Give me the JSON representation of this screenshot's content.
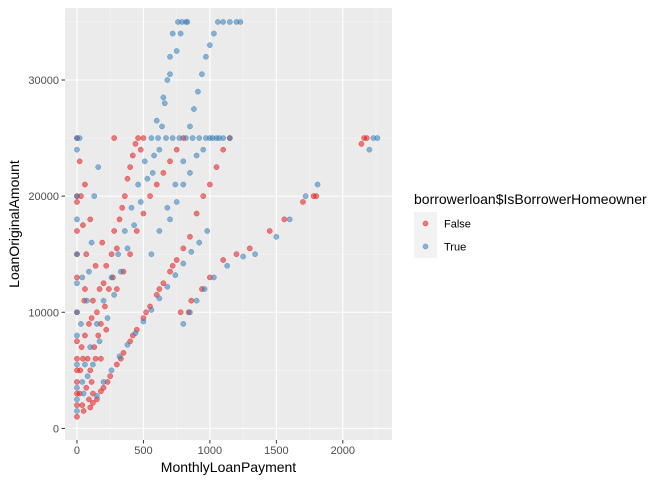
{
  "chart_data": {
    "type": "scatter",
    "xlabel": "MonthlyLoanPayment",
    "ylabel": "LoanOriginalAmount",
    "xlim": [
      -90,
      2370
    ],
    "ylim": [
      -1000,
      36200
    ],
    "x_ticks": [
      0,
      500,
      1000,
      1500,
      2000
    ],
    "y_ticks": [
      0,
      10000,
      20000,
      30000
    ],
    "x_tick_labels": [
      "0",
      "500",
      "1000",
      "1500",
      "2000"
    ],
    "y_tick_labels": [
      "0",
      "10000",
      "20000",
      "30000"
    ],
    "grid": true,
    "legend": {
      "title": "borrowerloan$IsBorrowerHomeowner",
      "placement": "right",
      "entries": [
        {
          "label": "False",
          "color": "#E41A1C"
        },
        {
          "label": "True",
          "color": "#377EB8"
        }
      ]
    },
    "series": [
      {
        "name": "False",
        "color": "#E41A1C",
        "points": [
          [
            0,
            1000
          ],
          [
            0,
            2000
          ],
          [
            0,
            3000
          ],
          [
            0,
            4000
          ],
          [
            0,
            5000
          ],
          [
            0,
            6000
          ],
          [
            0,
            7500
          ],
          [
            0,
            10000
          ],
          [
            0,
            13000
          ],
          [
            0,
            15000
          ],
          [
            0,
            17000
          ],
          [
            0,
            19500
          ],
          [
            0,
            20000
          ],
          [
            0,
            25000
          ],
          [
            20,
            3000
          ],
          [
            25,
            5000
          ],
          [
            40,
            2000
          ],
          [
            45,
            6000
          ],
          [
            50,
            1500
          ],
          [
            60,
            8000
          ],
          [
            70,
            3500
          ],
          [
            80,
            6000
          ],
          [
            90,
            2500
          ],
          [
            100,
            5000
          ],
          [
            110,
            4000
          ],
          [
            110,
            9500
          ],
          [
            120,
            3000
          ],
          [
            130,
            7000
          ],
          [
            140,
            6000
          ],
          [
            150,
            10000
          ],
          [
            160,
            8000
          ],
          [
            170,
            12000
          ],
          [
            180,
            9000
          ],
          [
            200,
            12500
          ],
          [
            210,
            10500
          ],
          [
            220,
            14000
          ],
          [
            240,
            12000
          ],
          [
            260,
            15000
          ],
          [
            270,
            13000
          ],
          [
            280,
            17000
          ],
          [
            300,
            15500
          ],
          [
            320,
            18000
          ],
          [
            340,
            19000
          ],
          [
            360,
            20000
          ],
          [
            380,
            21500
          ],
          [
            400,
            22500
          ],
          [
            420,
            23500
          ],
          [
            440,
            24500
          ],
          [
            460,
            25000
          ],
          [
            480,
            24000
          ],
          [
            500,
            25000
          ],
          [
            300,
            12000
          ],
          [
            350,
            13500
          ],
          [
            400,
            15000
          ],
          [
            450,
            17000
          ],
          [
            500,
            18500
          ],
          [
            550,
            20000
          ],
          [
            600,
            21000
          ],
          [
            650,
            22000
          ],
          [
            700,
            23000
          ],
          [
            750,
            24000
          ],
          [
            800,
            25000
          ],
          [
            280,
            25000
          ],
          [
            100,
            18000
          ],
          [
            70,
            15000
          ],
          [
            60,
            21000
          ],
          [
            120,
            11000
          ],
          [
            180,
            6000
          ],
          [
            220,
            8500
          ],
          [
            90,
            9000
          ],
          [
            140,
            14000
          ],
          [
            60,
            12000
          ],
          [
            190,
            16000
          ],
          [
            100,
            1800
          ],
          [
            150,
            2500
          ],
          [
            200,
            3500
          ],
          [
            250,
            4500
          ],
          [
            300,
            5500
          ],
          [
            350,
            6500
          ],
          [
            400,
            7500
          ],
          [
            450,
            8500
          ],
          [
            500,
            9500
          ],
          [
            550,
            10500
          ],
          [
            600,
            11500
          ],
          [
            650,
            12500
          ],
          [
            700,
            13500
          ],
          [
            750,
            14500
          ],
          [
            800,
            15500
          ],
          [
            850,
            16500
          ],
          [
            120,
            2200
          ],
          [
            180,
            3200
          ],
          [
            230,
            4000
          ],
          [
            330,
            6000
          ],
          [
            420,
            8000
          ],
          [
            520,
            10000
          ],
          [
            620,
            12000
          ],
          [
            720,
            14000
          ],
          [
            780,
            10000
          ],
          [
            840,
            10000
          ],
          [
            860,
            11000
          ],
          [
            940,
            12000
          ],
          [
            1000,
            13000
          ],
          [
            1100,
            14500
          ],
          [
            1200,
            15000
          ],
          [
            1300,
            15500
          ],
          [
            1450,
            17000
          ],
          [
            1560,
            18000
          ],
          [
            1700,
            19500
          ],
          [
            1780,
            20000
          ],
          [
            1800,
            20000
          ],
          [
            2140,
            24500
          ],
          [
            2160,
            25000
          ],
          [
            2180,
            25000
          ],
          [
            900,
            18500
          ],
          [
            950,
            20000
          ],
          [
            1000,
            21000
          ],
          [
            1050,
            22500
          ],
          [
            1100,
            24000
          ],
          [
            1150,
            25000
          ],
          [
            30,
            20000
          ],
          [
            45,
            17500
          ],
          [
            20,
            23000
          ],
          [
            55,
            11000
          ],
          [
            35,
            7000
          ]
        ]
      },
      {
        "name": "True",
        "color": "#377EB8",
        "points": [
          [
            0,
            1500
          ],
          [
            0,
            3500
          ],
          [
            0,
            5500
          ],
          [
            0,
            8000
          ],
          [
            0,
            10000
          ],
          [
            0,
            12500
          ],
          [
            0,
            15000
          ],
          [
            0,
            18000
          ],
          [
            0,
            20000
          ],
          [
            0,
            24000
          ],
          [
            0,
            25000
          ],
          [
            20,
            25000
          ],
          [
            50,
            3000
          ],
          [
            60,
            5500
          ],
          [
            80,
            4500
          ],
          [
            100,
            7000
          ],
          [
            120,
            5500
          ],
          [
            150,
            9000
          ],
          [
            170,
            7500
          ],
          [
            200,
            11000
          ],
          [
            230,
            9500
          ],
          [
            260,
            13000
          ],
          [
            280,
            11500
          ],
          [
            310,
            15000
          ],
          [
            330,
            13500
          ],
          [
            360,
            17000
          ],
          [
            380,
            15500
          ],
          [
            410,
            19000
          ],
          [
            430,
            17500
          ],
          [
            460,
            21000
          ],
          [
            480,
            19500
          ],
          [
            510,
            23000
          ],
          [
            530,
            21500
          ],
          [
            560,
            25000
          ],
          [
            580,
            23500
          ],
          [
            610,
            25000
          ],
          [
            640,
            26000
          ],
          [
            660,
            28000
          ],
          [
            680,
            30000
          ],
          [
            700,
            32000
          ],
          [
            720,
            34000
          ],
          [
            760,
            35000
          ],
          [
            790,
            35000
          ],
          [
            820,
            35000
          ],
          [
            830,
            35000
          ],
          [
            570,
            22000
          ],
          [
            620,
            24000
          ],
          [
            670,
            25000
          ],
          [
            720,
            25000
          ],
          [
            770,
            25000
          ],
          [
            820,
            25000
          ],
          [
            870,
            25000
          ],
          [
            920,
            25000
          ],
          [
            970,
            25000
          ],
          [
            1020,
            25000
          ],
          [
            1070,
            25000
          ],
          [
            600,
            26500
          ],
          [
            650,
            28500
          ],
          [
            700,
            30500
          ],
          [
            750,
            32500
          ],
          [
            780,
            34000
          ],
          [
            850,
            26000
          ],
          [
            880,
            27500
          ],
          [
            910,
            29000
          ],
          [
            940,
            30500
          ],
          [
            970,
            32000
          ],
          [
            1000,
            33000
          ],
          [
            1030,
            34000
          ],
          [
            1060,
            35000
          ],
          [
            1100,
            35000
          ],
          [
            1150,
            35000
          ],
          [
            1200,
            35000
          ],
          [
            1230,
            35000
          ],
          [
            700,
            18000
          ],
          [
            750,
            19500
          ],
          [
            800,
            21000
          ],
          [
            850,
            22000
          ],
          [
            900,
            23500
          ],
          [
            950,
            24000
          ],
          [
            1000,
            25000
          ],
          [
            1050,
            25000
          ],
          [
            1100,
            25000
          ],
          [
            1150,
            25000
          ],
          [
            150,
            2800
          ],
          [
            200,
            4000
          ],
          [
            260,
            5000
          ],
          [
            320,
            6200
          ],
          [
            380,
            7200
          ],
          [
            440,
            8200
          ],
          [
            500,
            9200
          ],
          [
            560,
            10200
          ],
          [
            620,
            11200
          ],
          [
            680,
            12200
          ],
          [
            740,
            13200
          ],
          [
            800,
            14200
          ],
          [
            860,
            15200
          ],
          [
            920,
            16000
          ],
          [
            980,
            17000
          ],
          [
            800,
            9000
          ],
          [
            850,
            10000
          ],
          [
            900,
            11000
          ],
          [
            960,
            12000
          ],
          [
            1030,
            13000
          ],
          [
            1130,
            14000
          ],
          [
            1250,
            14800
          ],
          [
            1340,
            15000
          ],
          [
            1500,
            16500
          ],
          [
            1600,
            18000
          ],
          [
            1720,
            20000
          ],
          [
            1810,
            21000
          ],
          [
            2230,
            25000
          ],
          [
            2260,
            25000
          ],
          [
            2200,
            24000
          ],
          [
            0,
            2500
          ],
          [
            40,
            4000
          ],
          [
            30,
            9000
          ],
          [
            75,
            11000
          ],
          [
            90,
            13500
          ],
          [
            110,
            16000
          ],
          [
            130,
            20000
          ],
          [
            160,
            22500
          ],
          [
            40,
            13000
          ],
          [
            560,
            15000
          ],
          [
            620,
            17000
          ],
          [
            680,
            19000
          ],
          [
            740,
            21000
          ],
          [
            800,
            23000
          ]
        ]
      }
    ]
  }
}
